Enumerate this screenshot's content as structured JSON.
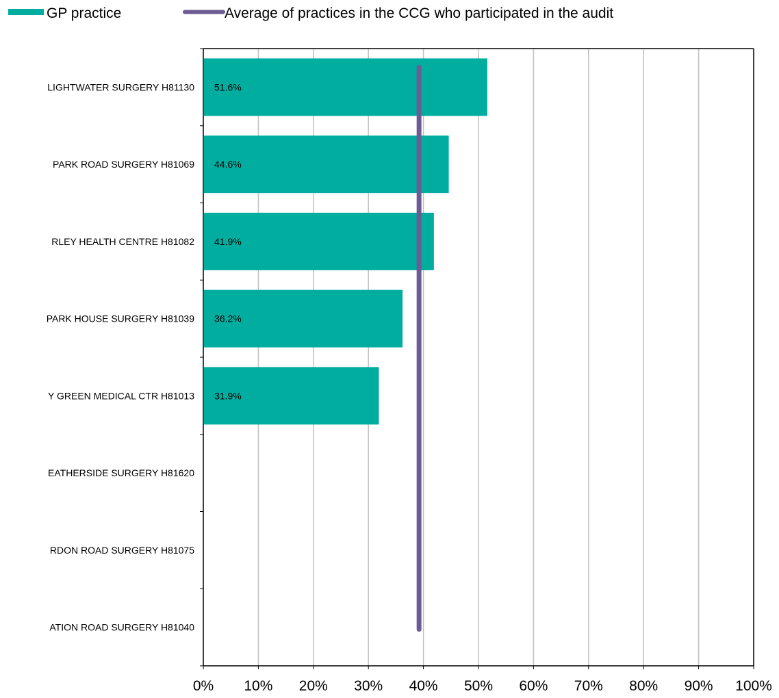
{
  "legend": {
    "bar_label": "GP practice",
    "line_label": "Average of practices in the CCG who participated in the audit"
  },
  "colors": {
    "bar": "#00ad9f",
    "average_line": "#6e5a94",
    "gridline": "#c0c0c0",
    "axis": "#000000"
  },
  "chart_data": {
    "type": "bar",
    "orientation": "horizontal",
    "categories": [
      "LIGHTWATER SURGERY H81130",
      "PARK ROAD SURGERY H81069",
      "RLEY HEALTH CENTRE H81082",
      "PARK HOUSE SURGERY H81039",
      "Y GREEN MEDICAL CTR H81013",
      "EATHERSIDE SURGERY H81620",
      "RDON ROAD SURGERY H81075",
      "ATION ROAD SURGERY H81040"
    ],
    "series": [
      {
        "name": "GP practice",
        "values": [
          51.6,
          44.6,
          41.9,
          36.2,
          31.9,
          null,
          null,
          null
        ],
        "data_labels": [
          "51.6%",
          "44.6%",
          "41.9%",
          "36.2%",
          "31.9%",
          "",
          "",
          ""
        ]
      }
    ],
    "average": {
      "name": "Average of practices in the CCG who participated in the audit",
      "value": 39.2
    },
    "xlim": [
      0,
      100
    ],
    "x_ticks": [
      "0%",
      "10%",
      "20%",
      "30%",
      "40%",
      "50%",
      "60%",
      "70%",
      "80%",
      "90%",
      "100%"
    ],
    "grid": true,
    "legend_position": "top"
  }
}
